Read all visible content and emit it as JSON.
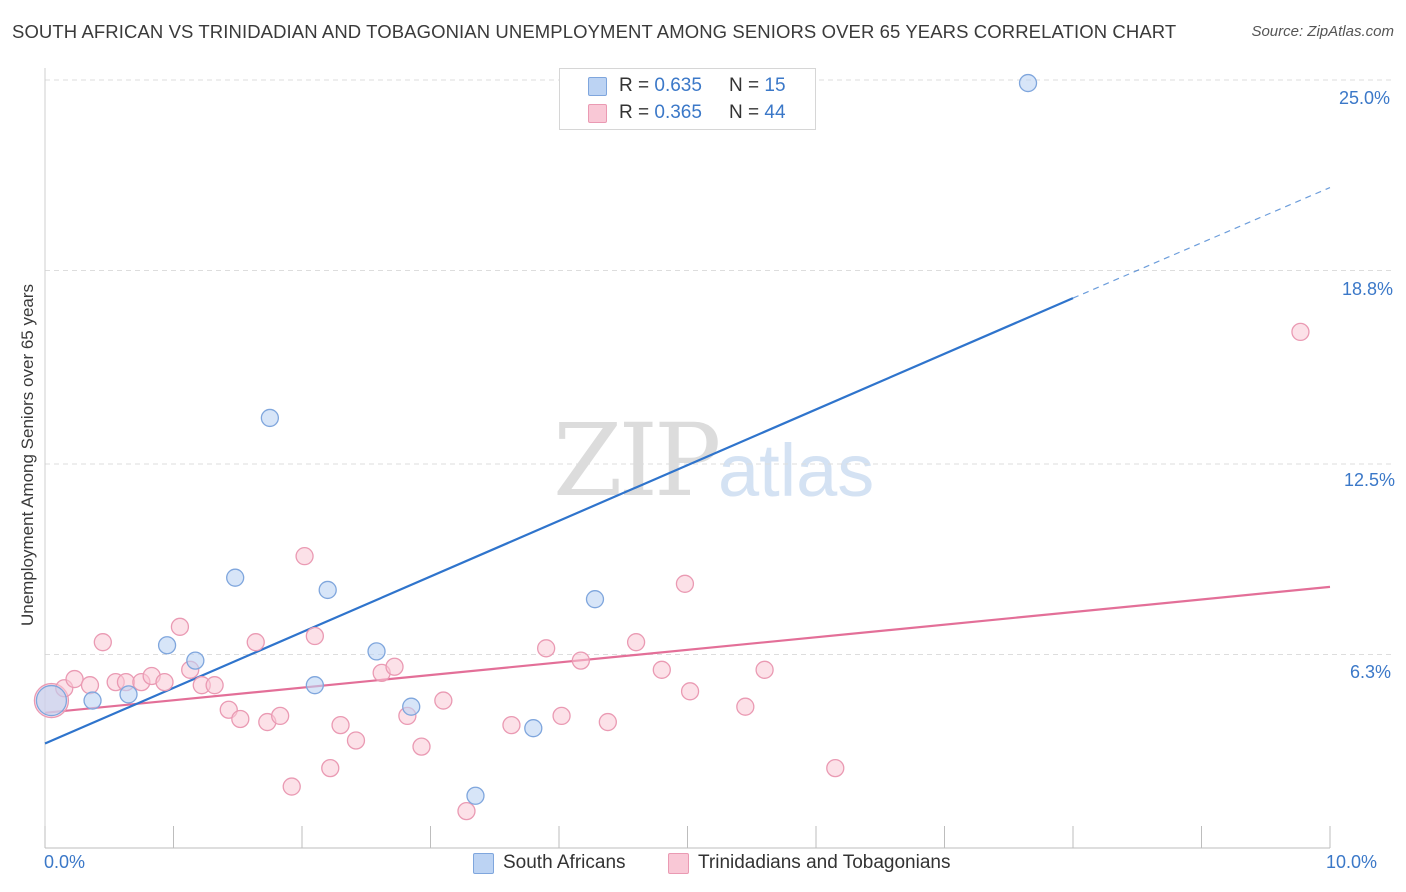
{
  "title": "SOUTH AFRICAN VS TRINIDADIAN AND TOBAGONIAN UNEMPLOYMENT AMONG SENIORS OVER 65 YEARS CORRELATION CHART",
  "source": "Source: ZipAtlas.com",
  "watermark": {
    "zip": "ZIP",
    "atlas": "atlas"
  },
  "legend": {
    "rows": [
      {
        "r_label": "R =",
        "r_value": "0.635",
        "n_label": "N =",
        "n_value": "15"
      },
      {
        "r_label": "R =",
        "r_value": "0.365",
        "n_label": "N =",
        "n_value": "44"
      }
    ]
  },
  "bottom_legend": {
    "south_africans": "South Africans",
    "trinidadians": "Trinidadians and Tobagonians"
  },
  "colors": {
    "blue_fill": "#bcd3f3",
    "blue_stroke": "#7fa6dd",
    "blue_line": "#2f74cc",
    "pink_fill": "#f9c8d6",
    "pink_stroke": "#ea9ab3",
    "pink_line": "#e36f98",
    "tick_label": "#3b78c8",
    "grid": "#dddddd"
  },
  "chart_data": {
    "type": "scatter",
    "title": "SOUTH AFRICAN VS TRINIDADIAN AND TOBAGONIAN UNEMPLOYMENT AMONG SENIORS OVER 65 YEARS CORRELATION CHART",
    "xlabel": "",
    "ylabel": "Unemployment Among Seniors over 65 years",
    "xlim": [
      0,
      10
    ],
    "ylim": [
      0,
      25.6
    ],
    "x_tick_labels": [
      "0.0%",
      "10.0%"
    ],
    "y_ticks": [
      6.3,
      12.5,
      18.8,
      25.0
    ],
    "y_tick_labels": [
      "6.3%",
      "12.5%",
      "18.8%",
      "25.0%"
    ],
    "grid": true,
    "series": [
      {
        "name": "South Africans",
        "points": [
          [
            0.05,
            4.8
          ],
          [
            0.37,
            4.8
          ],
          [
            0.65,
            5.0
          ],
          [
            0.95,
            6.6
          ],
          [
            1.17,
            6.1
          ],
          [
            1.48,
            8.8
          ],
          [
            1.75,
            14.0
          ],
          [
            2.1,
            5.3
          ],
          [
            2.2,
            8.4
          ],
          [
            2.58,
            6.4
          ],
          [
            2.85,
            4.6
          ],
          [
            3.35,
            1.7
          ],
          [
            3.8,
            3.9
          ],
          [
            4.28,
            8.1
          ],
          [
            7.65,
            24.9
          ]
        ],
        "trend": {
          "x0": 0.0,
          "y0": 3.4,
          "x1": 8.0,
          "y1": 17.9,
          "dash_to_x": 10.0,
          "dash_to_y": 21.5
        }
      },
      {
        "name": "Trinidadians and Tobagonians",
        "points": [
          [
            0.05,
            4.8
          ],
          [
            0.15,
            5.2
          ],
          [
            0.23,
            5.5
          ],
          [
            0.35,
            5.3
          ],
          [
            0.45,
            6.7
          ],
          [
            0.55,
            5.4
          ],
          [
            0.63,
            5.4
          ],
          [
            0.75,
            5.4
          ],
          [
            0.83,
            5.6
          ],
          [
            0.93,
            5.4
          ],
          [
            1.05,
            7.2
          ],
          [
            1.13,
            5.8
          ],
          [
            1.22,
            5.3
          ],
          [
            1.32,
            5.3
          ],
          [
            1.43,
            4.5
          ],
          [
            1.52,
            4.2
          ],
          [
            1.64,
            6.7
          ],
          [
            1.73,
            4.1
          ],
          [
            1.83,
            4.3
          ],
          [
            1.92,
            2.0
          ],
          [
            2.02,
            9.5
          ],
          [
            2.1,
            6.9
          ],
          [
            2.22,
            2.6
          ],
          [
            2.3,
            4.0
          ],
          [
            2.42,
            3.5
          ],
          [
            2.62,
            5.7
          ],
          [
            2.72,
            5.9
          ],
          [
            2.82,
            4.3
          ],
          [
            2.93,
            3.3
          ],
          [
            3.1,
            4.8
          ],
          [
            3.28,
            1.2
          ],
          [
            3.63,
            4.0
          ],
          [
            3.9,
            6.5
          ],
          [
            4.02,
            4.3
          ],
          [
            4.17,
            6.1
          ],
          [
            4.38,
            4.1
          ],
          [
            4.6,
            6.7
          ],
          [
            4.98,
            8.6
          ],
          [
            4.8,
            5.8
          ],
          [
            5.02,
            5.1
          ],
          [
            5.45,
            4.6
          ],
          [
            5.6,
            5.8
          ],
          [
            6.15,
            2.6
          ],
          [
            9.77,
            16.8
          ]
        ],
        "trend": {
          "x0": 0.0,
          "y0": 4.4,
          "x1": 10.0,
          "y1": 8.5
        }
      }
    ]
  }
}
